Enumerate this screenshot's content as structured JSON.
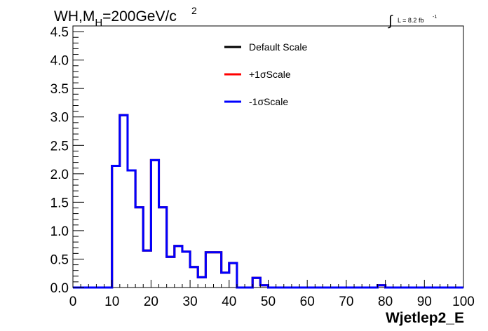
{
  "chart_data": {
    "type": "line",
    "title": {
      "main": "WH,M",
      "sub": "H",
      "rest": "=200GeV/c",
      "sup": "2"
    },
    "lumi": {
      "integral": "∫",
      "text": "L = 8.2 fb",
      "sup": "-1"
    },
    "xlabel": "Wjetlep2_E",
    "ylabel": "",
    "xlim": [
      0,
      100
    ],
    "ylim": [
      0,
      4.6
    ],
    "x_ticks": [
      "0",
      "10",
      "20",
      "30",
      "40",
      "50",
      "60",
      "70",
      "80",
      "90",
      "100"
    ],
    "y_ticks": [
      "0.0",
      "0.5",
      "1.0",
      "1.5",
      "2.0",
      "2.5",
      "3.0",
      "3.5",
      "4.0",
      "4.5"
    ],
    "bin_edges": [
      0,
      2,
      4,
      6,
      8,
      10,
      12,
      14,
      16,
      18,
      20,
      22,
      24,
      26,
      28,
      30,
      32,
      34,
      36,
      38,
      40,
      42,
      44,
      46,
      48,
      50,
      52,
      54,
      56,
      58,
      60,
      62,
      64,
      66,
      68,
      70,
      72,
      74,
      76,
      78,
      80,
      82,
      84,
      86,
      88,
      90,
      92,
      94,
      96,
      98,
      100
    ],
    "series": [
      {
        "name": "Default Scale",
        "color": "#000000",
        "values": [
          0,
          0,
          0,
          0,
          0,
          2.14,
          3.03,
          2.06,
          1.41,
          0.65,
          2.24,
          1.41,
          0.54,
          0.73,
          0.63,
          0.36,
          0.18,
          0.62,
          0.62,
          0.26,
          0.43,
          0,
          0,
          0.17,
          0.04,
          0,
          0,
          0,
          0,
          0,
          0,
          0,
          0,
          0,
          0,
          0,
          0,
          0,
          0,
          0.04,
          0,
          0,
          0,
          0,
          0,
          0,
          0,
          0,
          0,
          0
        ]
      },
      {
        "name": "+1σScale",
        "color": "#ff0000",
        "values": [
          0,
          0,
          0,
          0,
          0,
          2.14,
          3.03,
          2.06,
          1.41,
          0.65,
          2.24,
          1.41,
          0.54,
          0.73,
          0.63,
          0.36,
          0.18,
          0.62,
          0.62,
          0.26,
          0.43,
          0,
          0,
          0.17,
          0.04,
          0,
          0,
          0,
          0,
          0,
          0,
          0,
          0,
          0,
          0,
          0,
          0,
          0,
          0,
          0.04,
          0,
          0,
          0,
          0,
          0,
          0,
          0,
          0,
          0,
          0
        ]
      },
      {
        "name": "-1σScale",
        "color": "#0000ff",
        "values": [
          0,
          0,
          0,
          0,
          0,
          2.14,
          3.03,
          2.06,
          1.41,
          0.65,
          2.24,
          1.41,
          0.54,
          0.73,
          0.63,
          0.36,
          0.18,
          0.62,
          0.62,
          0.26,
          0.43,
          0,
          0,
          0.17,
          0.04,
          0,
          0,
          0,
          0,
          0,
          0,
          0,
          0,
          0,
          0,
          0,
          0,
          0,
          0,
          0.04,
          0,
          0,
          0,
          0,
          0,
          0,
          0,
          0,
          0,
          0
        ]
      }
    ],
    "legend_placement": "top-center",
    "grid": false
  }
}
